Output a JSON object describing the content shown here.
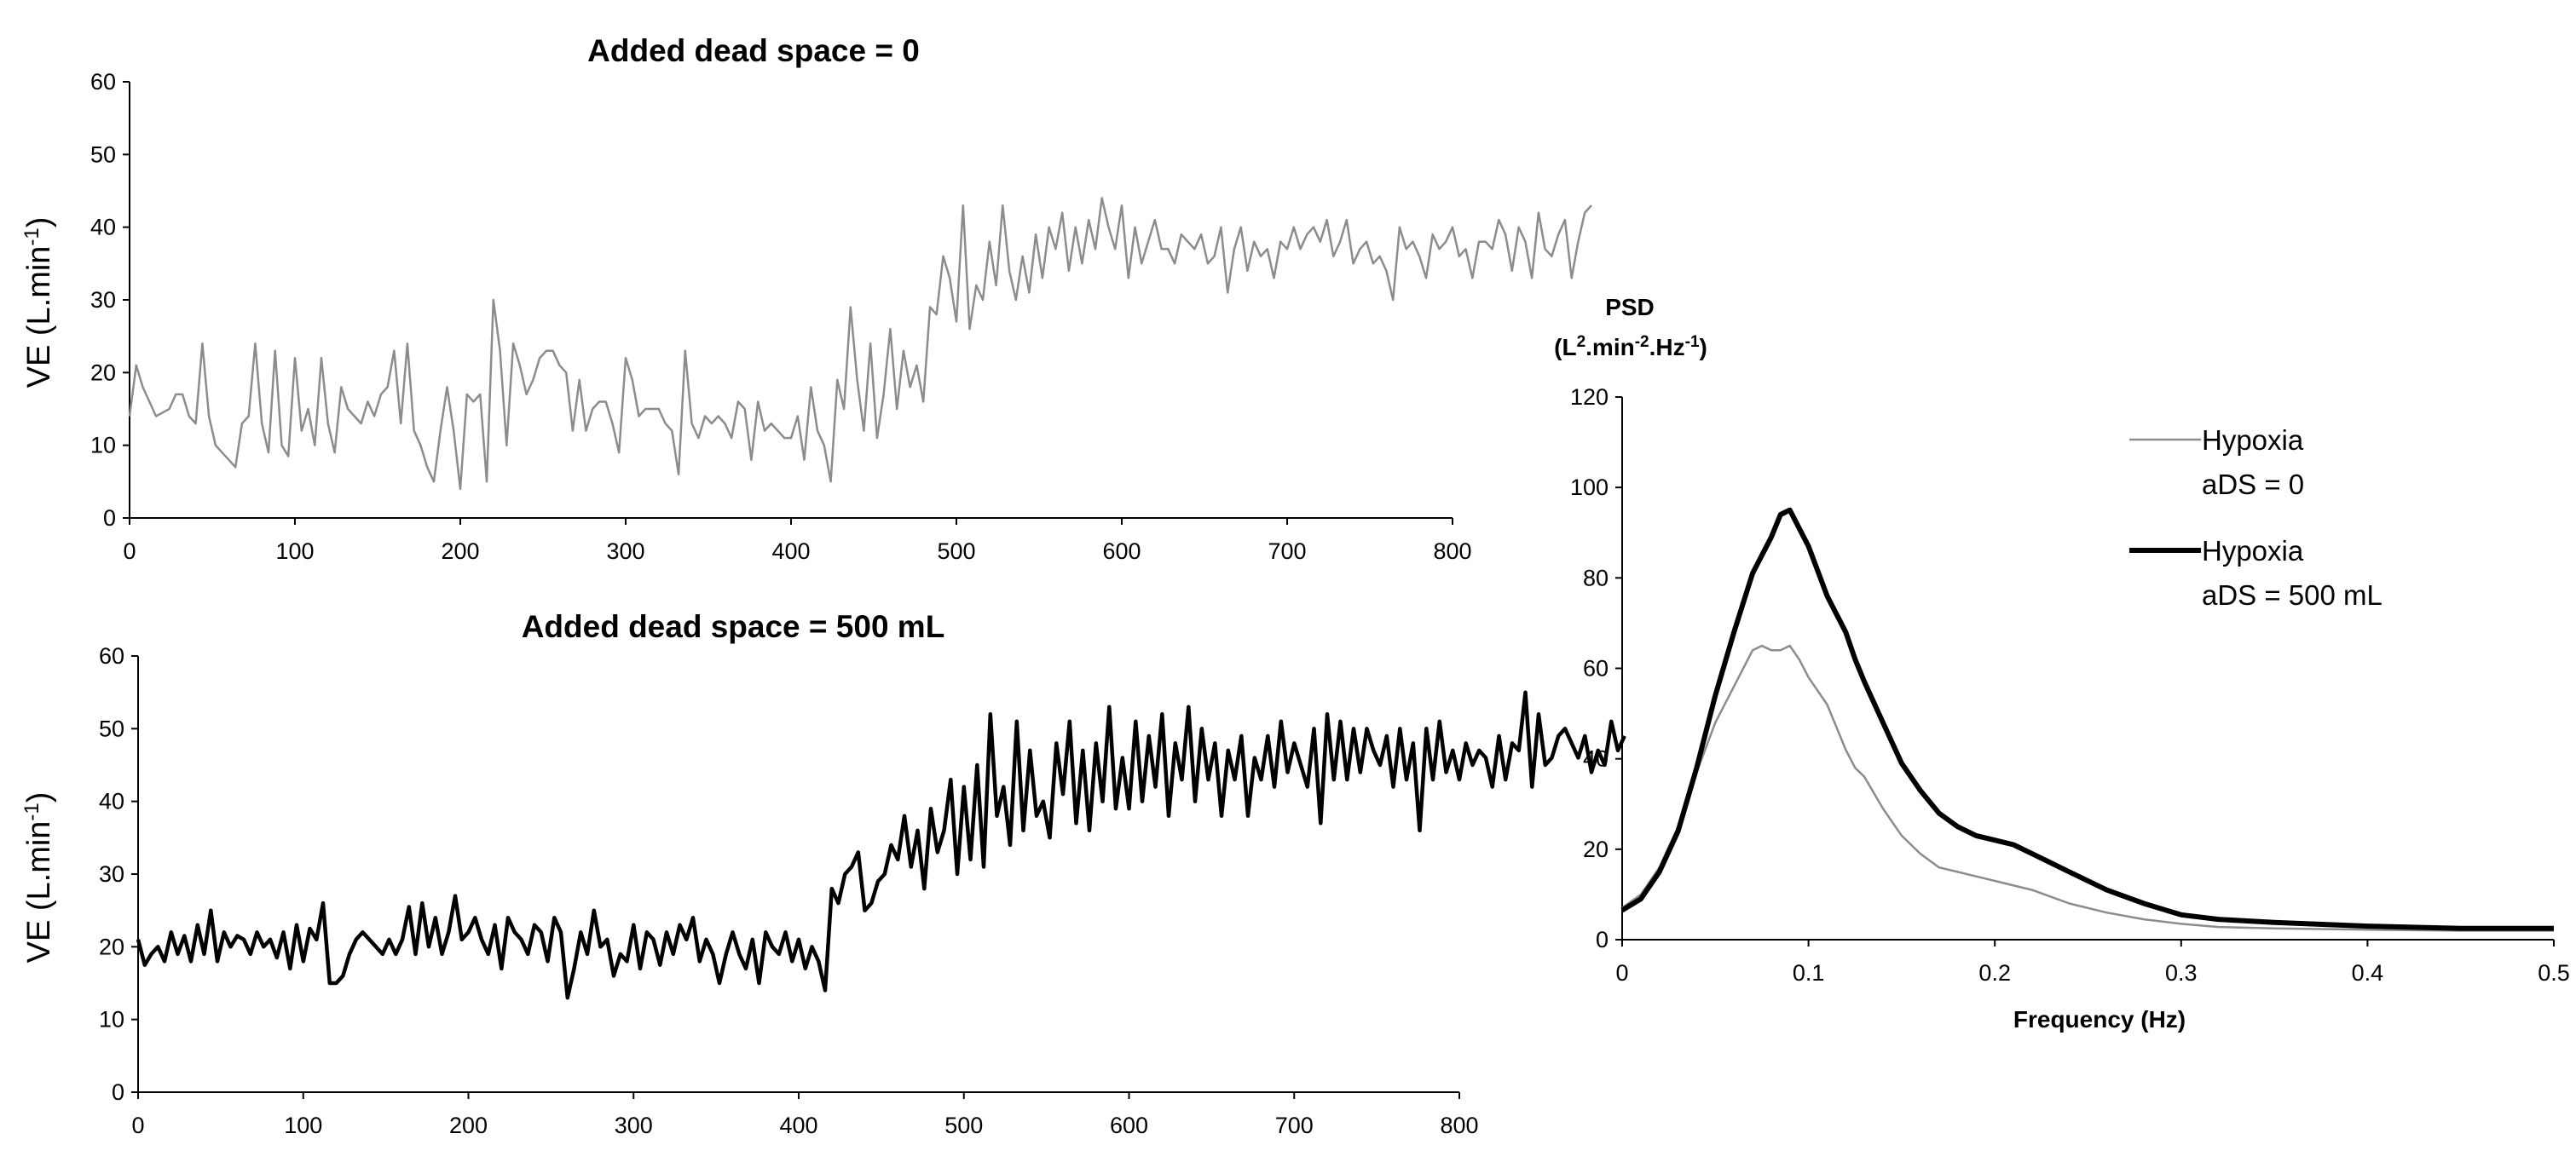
{
  "chart_data": [
    {
      "type": "line",
      "title": "Added dead space = 0",
      "ylabel": {
        "main": "VE  (L.min",
        "sup": "-1",
        "close": ")"
      },
      "xlabel": "",
      "xlim": [
        0,
        800
      ],
      "ylim": [
        0,
        60
      ],
      "x_ticks": [
        0,
        100,
        200,
        300,
        400,
        500,
        600,
        700,
        800
      ],
      "y_ticks": [
        0,
        10,
        20,
        30,
        40,
        50,
        60
      ],
      "grid": false,
      "series": [
        {
          "color": "#8c8c8c",
          "x_start": 0,
          "x_step": 4,
          "values": [
            14,
            21,
            18,
            16,
            14,
            14.5,
            15,
            17,
            17,
            14,
            13,
            24,
            14,
            10,
            9,
            8,
            7,
            13,
            14,
            24,
            13,
            9,
            23,
            10,
            8.5,
            22,
            12,
            15,
            10,
            22,
            13,
            9,
            18,
            15,
            14,
            13,
            16,
            14,
            17,
            18,
            23,
            13,
            24,
            12,
            10,
            7,
            5,
            12,
            18,
            12,
            4,
            17,
            16,
            17,
            5,
            30,
            23,
            10,
            24,
            21,
            17,
            19,
            22,
            23,
            23,
            21,
            20,
            12,
            19,
            12,
            15,
            16,
            16,
            13,
            9,
            22,
            19,
            14,
            15,
            15,
            15,
            13,
            12,
            6,
            23,
            13,
            11,
            14,
            13,
            14,
            13,
            11,
            16,
            15,
            8,
            16,
            12,
            13,
            12,
            11,
            11,
            14,
            8,
            18,
            12,
            10,
            5,
            19,
            15,
            29,
            19,
            12,
            24,
            11,
            17,
            26,
            15,
            23,
            18,
            21,
            16,
            29,
            28,
            36,
            33,
            27,
            43,
            26,
            32,
            30,
            38,
            32,
            43,
            34,
            30,
            36,
            31,
            39,
            33,
            40,
            37,
            42,
            34,
            40,
            35,
            41,
            37,
            44,
            40,
            37,
            43,
            33,
            40,
            35,
            38,
            41,
            37,
            37,
            35,
            39,
            38,
            37,
            39,
            35,
            36,
            40,
            31,
            37,
            40,
            34,
            38,
            36,
            37,
            33,
            38,
            37,
            40,
            37,
            39,
            40,
            38,
            41,
            36,
            38,
            41,
            35,
            37,
            38,
            35,
            36,
            34,
            30,
            40,
            37,
            38,
            36,
            33,
            39,
            37,
            38,
            40,
            36,
            37,
            33,
            38,
            38,
            37,
            41,
            39,
            34,
            40,
            38,
            33,
            42,
            37,
            36,
            39,
            41,
            33,
            38,
            42,
            43
          ]
        }
      ]
    },
    {
      "type": "line",
      "title": "Added dead space  = 500 mL",
      "ylabel": {
        "main": "VE  (L.min",
        "sup": "-1",
        "close": ")"
      },
      "xlabel": "",
      "xlim": [
        0,
        800
      ],
      "ylim": [
        0,
        60
      ],
      "x_ticks": [
        0,
        100,
        200,
        300,
        400,
        500,
        600,
        700,
        800
      ],
      "y_ticks": [
        0,
        10,
        20,
        30,
        40,
        50,
        60
      ],
      "grid": false,
      "series": [
        {
          "color": "#000000",
          "x_start": 0,
          "x_step": 4,
          "values": [
            21,
            17.5,
            19,
            20,
            18,
            22,
            19,
            21.5,
            18,
            23,
            19,
            25,
            18,
            22,
            20,
            21.5,
            21,
            19,
            22,
            20,
            21,
            18.5,
            22,
            17,
            23,
            18,
            22.5,
            21,
            26,
            15,
            15,
            16,
            19,
            21,
            22,
            21,
            20,
            19,
            21,
            19,
            21,
            25.5,
            19,
            26,
            20,
            24,
            19,
            22,
            27,
            21,
            22,
            24,
            21,
            19,
            23,
            17,
            24,
            22,
            21,
            19,
            23,
            22,
            18,
            24,
            22,
            13,
            17,
            22,
            19,
            25,
            20,
            21,
            16,
            19,
            18,
            23,
            17,
            22,
            21,
            17.5,
            22,
            19,
            23,
            21,
            24,
            18,
            21,
            19,
            15,
            19,
            22,
            19,
            17,
            21,
            15,
            22,
            20,
            19,
            22,
            18,
            21,
            17,
            20,
            18,
            14,
            28,
            26,
            30,
            31,
            33,
            25,
            26,
            29,
            30,
            34,
            32,
            38,
            31,
            36,
            28,
            39,
            33,
            36,
            43,
            30,
            42,
            32,
            45,
            31,
            52,
            38,
            42,
            34,
            51,
            36,
            47,
            38,
            40,
            35,
            48,
            41,
            51,
            37,
            47,
            36,
            48,
            40,
            53,
            39,
            46,
            39,
            51,
            40,
            49,
            42,
            52,
            38,
            48,
            43,
            53,
            40,
            50,
            43,
            48,
            38,
            47,
            43,
            49,
            38,
            46,
            43,
            49,
            42,
            51,
            44,
            48,
            45,
            42,
            50,
            37,
            52,
            43,
            51,
            43,
            50,
            44,
            50,
            47,
            45,
            49,
            42,
            50,
            43,
            48,
            36,
            50,
            43,
            51,
            44,
            47,
            43,
            48,
            45,
            47,
            46,
            42,
            49,
            43,
            48,
            47,
            55,
            42,
            52,
            45,
            46,
            49,
            50,
            48,
            46,
            49,
            44,
            47,
            45,
            51,
            47,
            49
          ]
        }
      ]
    },
    {
      "type": "line",
      "title": "",
      "ylabel": {
        "line1": "PSD",
        "line2_a": "(L",
        "sup1": "2",
        "line2_b": ".min",
        "sup2": "-2",
        "line2_c": ".Hz",
        "sup3": "-1",
        "line2_d": ")"
      },
      "xlabel": "Frequency (Hz)",
      "xlim": [
        0,
        0.5
      ],
      "ylim": [
        0,
        120
      ],
      "x_ticks": [
        "0",
        "0.1",
        "0.2",
        "0.3",
        "0.4",
        "0.5"
      ],
      "y_ticks": [
        0,
        20,
        40,
        60,
        80,
        100,
        120
      ],
      "grid": false,
      "legend": "top-right",
      "series": [
        {
          "name_line1": "Hypoxia",
          "name_line2": "aDS = 0",
          "color": "#8c8c8c",
          "x": [
            0,
            0.01,
            0.02,
            0.03,
            0.04,
            0.05,
            0.06,
            0.07,
            0.075,
            0.08,
            0.085,
            0.09,
            0.095,
            0.1,
            0.11,
            0.12,
            0.125,
            0.13,
            0.14,
            0.15,
            0.16,
            0.17,
            0.18,
            0.19,
            0.2,
            0.22,
            0.24,
            0.26,
            0.28,
            0.3,
            0.32,
            0.35,
            0.4,
            0.45,
            0.5
          ],
          "values": [
            7,
            10,
            16,
            25,
            37,
            48,
            56,
            64,
            65,
            64,
            64,
            65,
            62,
            58,
            52,
            42,
            38,
            36,
            29,
            23,
            19,
            16,
            15,
            14,
            13,
            11,
            8,
            6,
            4.5,
            3.5,
            2.8,
            2.5,
            2.2,
            2,
            2
          ]
        },
        {
          "name_line1": "Hypoxia",
          "name_line2": "aDS = 500 mL",
          "color": "#000000",
          "x": [
            0,
            0.01,
            0.02,
            0.03,
            0.04,
            0.05,
            0.06,
            0.07,
            0.08,
            0.085,
            0.09,
            0.1,
            0.11,
            0.12,
            0.125,
            0.13,
            0.14,
            0.15,
            0.16,
            0.17,
            0.18,
            0.19,
            0.2,
            0.21,
            0.22,
            0.24,
            0.26,
            0.28,
            0.3,
            0.32,
            0.35,
            0.4,
            0.45,
            0.5
          ],
          "values": [
            6.5,
            9,
            15,
            24,
            38,
            54,
            68,
            81,
            89,
            94,
            95,
            87,
            76,
            68,
            62,
            57,
            48,
            39,
            33,
            28,
            25,
            23,
            22,
            21,
            19,
            15,
            11,
            8,
            5.5,
            4.5,
            3.8,
            3,
            2.5,
            2.5
          ]
        }
      ]
    }
  ]
}
